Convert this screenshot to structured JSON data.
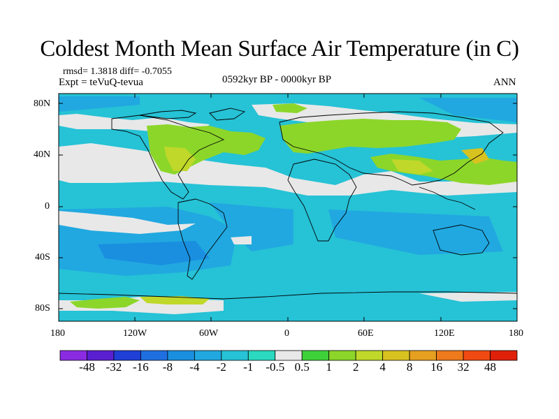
{
  "title": "Coldest Month Mean Surface Air Temperature (in C)",
  "stats": "rmsd= 1.3818 diff= -0.7055",
  "expt": "Expt = teVuQ-tevua",
  "period": "0592kyr BP - 0000kyr BP",
  "season": "ANN",
  "axes": {
    "lat_ticks": [
      "80N",
      "40N",
      "0",
      "40S",
      "80S"
    ],
    "lon_ticks": [
      "180",
      "120W",
      "60W",
      "0",
      "60E",
      "120E",
      "180"
    ]
  },
  "colorbar": {
    "labels": [
      "-48",
      "-32",
      "-16",
      "-8",
      "-4",
      "-2",
      "-1",
      "-0.5",
      "0.5",
      "1",
      "2",
      "4",
      "8",
      "16",
      "32",
      "48"
    ],
    "colors": [
      "#8a2be2",
      "#5a1fd0",
      "#1f3fd6",
      "#1f6fe0",
      "#1a8fe0",
      "#21a8e0",
      "#26c2d6",
      "#2ad9c0",
      "#e8e8e8",
      "#3fd13a",
      "#8cd62a",
      "#bfd82a",
      "#d8c21f",
      "#e6a020",
      "#ee7a1c",
      "#f04a12",
      "#e02008"
    ]
  },
  "field_colors": {
    "ocean": "#26c2d6",
    "ocean_cool": "#21a8e0",
    "neutral": "#e8e8e8",
    "warm1": "#8cd62a",
    "warm2": "#bfd82a",
    "warm3": "#d8c21f"
  }
}
